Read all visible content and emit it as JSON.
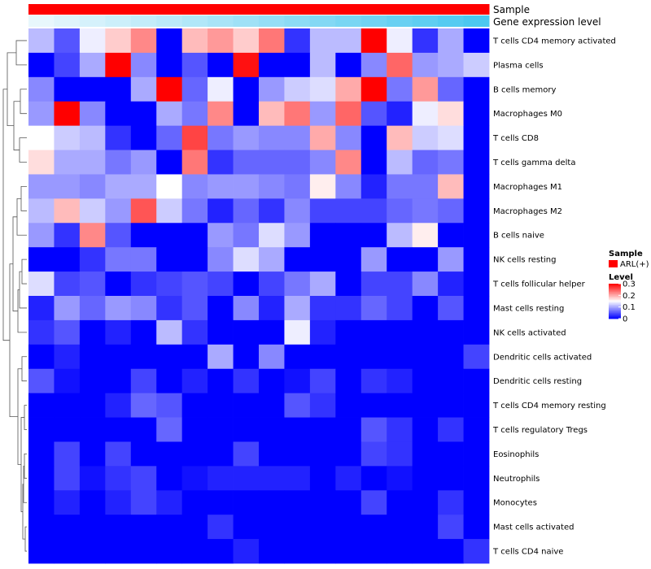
{
  "chart_data": {
    "type": "heatmap",
    "annotation_rows": [
      {
        "name": "Sample",
        "kind": "categorical",
        "color": "#ff0000"
      },
      {
        "name": "Gene expression level",
        "kind": "gradient",
        "from": "#e8f7fc",
        "to": "#4cc8f0"
      }
    ],
    "rows": [
      "T cells CD4 memory activated",
      "Plasma cells",
      "B cells memory",
      "Macrophages M0",
      "T cells CD8",
      "T cells gamma delta",
      "Macrophages M1",
      "Macrophages M2",
      "B cells naive",
      "NK cells resting",
      "T cells follicular helper",
      "Mast cells resting",
      "NK cells activated",
      "Dendritic cells activated",
      "Dendritic cells resting",
      "T cells CD4 memory resting",
      "T cells regulatory  Tregs",
      "Eosinophils",
      "Neutrophils",
      "Monocytes",
      "Mast cells activated",
      "T cells CD4 naive"
    ],
    "n_columns": 18,
    "color_scale": {
      "min": 0,
      "max": 0.3,
      "low": "#0000ff",
      "mid": "#ffffff",
      "high": "#ff0000",
      "mid_value": 0.15
    },
    "values": [
      [
        0.11,
        0.05,
        0.14,
        0.18,
        0.22,
        0.0,
        0.19,
        0.21,
        0.18,
        0.23,
        0.03,
        0.11,
        0.11,
        0.3,
        0.14,
        0.03,
        0.1,
        0.0
      ],
      [
        0.0,
        0.04,
        0.1,
        0.3,
        0.08,
        0.0,
        0.05,
        0.0,
        0.29,
        0.0,
        0.0,
        0.11,
        0.0,
        0.08,
        0.24,
        0.09,
        0.1,
        0.12
      ],
      [
        0.08,
        0.0,
        0.0,
        0.0,
        0.1,
        0.3,
        0.06,
        0.14,
        0.0,
        0.09,
        0.12,
        0.13,
        0.2,
        0.3,
        0.07,
        0.21,
        0.06,
        0.0
      ],
      [
        0.09,
        0.3,
        0.08,
        0.0,
        0.0,
        0.1,
        0.07,
        0.22,
        0.0,
        0.19,
        0.23,
        0.09,
        0.24,
        0.05,
        0.02,
        0.14,
        0.17,
        0.0
      ],
      [
        0.15,
        0.12,
        0.11,
        0.03,
        0.0,
        0.06,
        0.26,
        0.07,
        0.09,
        0.08,
        0.08,
        0.2,
        0.08,
        0.0,
        0.19,
        0.12,
        0.13,
        0.0
      ],
      [
        0.17,
        0.1,
        0.1,
        0.07,
        0.09,
        0.0,
        0.23,
        0.03,
        0.06,
        0.06,
        0.06,
        0.08,
        0.22,
        0.0,
        0.11,
        0.06,
        0.07,
        0.0
      ],
      [
        0.09,
        0.09,
        0.08,
        0.1,
        0.1,
        0.15,
        0.08,
        0.09,
        0.09,
        0.08,
        0.07,
        0.16,
        0.08,
        0.02,
        0.07,
        0.07,
        0.19,
        0.0
      ],
      [
        0.11,
        0.19,
        0.12,
        0.09,
        0.25,
        0.12,
        0.07,
        0.02,
        0.06,
        0.03,
        0.08,
        0.04,
        0.04,
        0.04,
        0.06,
        0.07,
        0.06,
        0.0
      ],
      [
        0.09,
        0.03,
        0.22,
        0.05,
        0.0,
        0.0,
        0.0,
        0.09,
        0.07,
        0.13,
        0.09,
        0.0,
        0.0,
        0.0,
        0.11,
        0.16,
        0.0,
        0.0
      ],
      [
        0.0,
        0.0,
        0.03,
        0.07,
        0.07,
        0.0,
        0.0,
        0.08,
        0.13,
        0.1,
        0.0,
        0.0,
        0.0,
        0.09,
        0.0,
        0.0,
        0.09,
        0.0
      ],
      [
        0.13,
        0.04,
        0.05,
        0.0,
        0.03,
        0.04,
        0.05,
        0.04,
        0.0,
        0.04,
        0.07,
        0.1,
        0.0,
        0.04,
        0.04,
        0.08,
        0.02,
        0.0
      ],
      [
        0.02,
        0.09,
        0.06,
        0.09,
        0.08,
        0.03,
        0.05,
        0.0,
        0.08,
        0.02,
        0.1,
        0.03,
        0.03,
        0.06,
        0.04,
        0.0,
        0.05,
        0.0
      ],
      [
        0.03,
        0.05,
        0.0,
        0.02,
        0.0,
        0.11,
        0.03,
        0.0,
        0.0,
        0.0,
        0.14,
        0.02,
        0.0,
        0.0,
        0.0,
        0.0,
        0.0,
        0.0
      ],
      [
        0.0,
        0.02,
        0.0,
        0.0,
        0.0,
        0.0,
        0.0,
        0.1,
        0.0,
        0.08,
        0.0,
        0.0,
        0.0,
        0.0,
        0.0,
        0.0,
        0.0,
        0.04
      ],
      [
        0.05,
        0.01,
        0.0,
        0.0,
        0.04,
        0.0,
        0.02,
        0.0,
        0.03,
        0.0,
        0.01,
        0.04,
        0.0,
        0.03,
        0.02,
        0.0,
        0.0,
        0.0
      ],
      [
        0.0,
        0.0,
        0.0,
        0.02,
        0.06,
        0.05,
        0.0,
        0.0,
        0.0,
        0.0,
        0.05,
        0.03,
        0.0,
        0.0,
        0.0,
        0.0,
        0.0,
        0.0
      ],
      [
        0.0,
        0.0,
        0.0,
        0.0,
        0.0,
        0.06,
        0.0,
        0.0,
        0.0,
        0.0,
        0.0,
        0.0,
        0.0,
        0.05,
        0.03,
        0.0,
        0.03,
        0.0
      ],
      [
        0.0,
        0.04,
        0.0,
        0.04,
        0.0,
        0.0,
        0.0,
        0.0,
        0.04,
        0.0,
        0.0,
        0.0,
        0.0,
        0.04,
        0.03,
        0.0,
        0.0,
        0.0
      ],
      [
        0.0,
        0.04,
        0.01,
        0.03,
        0.04,
        0.0,
        0.01,
        0.02,
        0.02,
        0.02,
        0.02,
        0.0,
        0.02,
        0.0,
        0.01,
        0.0,
        0.0,
        0.0
      ],
      [
        0.0,
        0.02,
        0.0,
        0.02,
        0.04,
        0.02,
        0.0,
        0.0,
        0.0,
        0.0,
        0.0,
        0.0,
        0.0,
        0.04,
        0.0,
        0.0,
        0.03,
        0.0
      ],
      [
        0.0,
        0.0,
        0.0,
        0.0,
        0.0,
        0.0,
        0.0,
        0.03,
        0.0,
        0.0,
        0.0,
        0.0,
        0.0,
        0.0,
        0.0,
        0.0,
        0.04,
        0.0
      ],
      [
        0.0,
        0.0,
        0.0,
        0.0,
        0.0,
        0.0,
        0.0,
        0.0,
        0.02,
        0.0,
        0.0,
        0.0,
        0.0,
        0.0,
        0.0,
        0.0,
        0.0,
        0.03
      ]
    ],
    "column_annotation": {
      "Sample": [
        "ARL(+)",
        "ARL(+)",
        "ARL(+)",
        "ARL(+)",
        "ARL(+)",
        "ARL(+)",
        "ARL(+)",
        "ARL(+)",
        "ARL(+)",
        "ARL(+)",
        "ARL(+)",
        "ARL(+)",
        "ARL(+)",
        "ARL(+)",
        "ARL(+)",
        "ARL(+)",
        "ARL(+)",
        "ARL(+)"
      ],
      "Gene expression level": [
        0.0,
        0.06,
        0.12,
        0.18,
        0.24,
        0.29,
        0.35,
        0.41,
        0.47,
        0.53,
        0.59,
        0.65,
        0.71,
        0.76,
        0.82,
        0.88,
        0.94,
        1.0
      ]
    },
    "legend": {
      "sample_title": "Sample",
      "sample_item": "ARL(+)",
      "sample_color": "#ff0000",
      "level_title": "Level",
      "level_ticks": [
        {
          "value": 0.3,
          "label": "0.3"
        },
        {
          "value": 0.2,
          "label": "0.2"
        },
        {
          "value": 0.1,
          "label": "0.1"
        },
        {
          "value": 0,
          "label": "0"
        }
      ]
    },
    "row_dendrogram": "left",
    "grid": false
  }
}
